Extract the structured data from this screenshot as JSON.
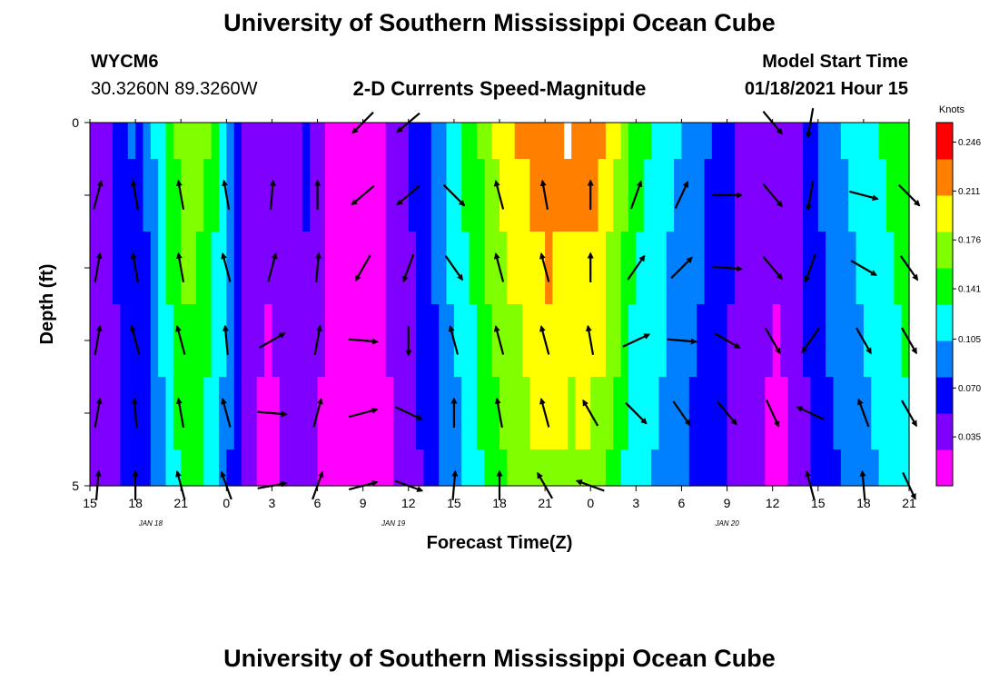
{
  "page": {
    "title": "University of Southern Mississippi Ocean Cube",
    "footer_title": "University of Southern Mississippi Ocean Cube",
    "station_id": "WYCM6",
    "station_coords": "30.3260N 89.3260W",
    "chart_heading": "2-D Currents Speed-Magnitude",
    "model_start_label": "Model Start Time",
    "model_start_value": "01/18/2021 Hour 15"
  },
  "chart_data": {
    "type": "heatmap",
    "title": "2-D Currents Speed-Magnitude",
    "xlabel": "Forecast Time(Z)",
    "ylabel": "Depth (ft)",
    "x_tick_labels": [
      "15",
      "18",
      "21",
      "0",
      "3",
      "6",
      "9",
      "12",
      "15",
      "18",
      "21",
      "0",
      "3",
      "6",
      "9",
      "12",
      "15",
      "18",
      "21"
    ],
    "x_hours": [
      15,
      18,
      21,
      24,
      27,
      30,
      33,
      36,
      39,
      42,
      45,
      48,
      51,
      54,
      57,
      60,
      63,
      66,
      69
    ],
    "xlim": [
      15,
      69
    ],
    "date_labels": [
      {
        "hour": 19,
        "text": "JAN 18"
      },
      {
        "hour": 35,
        "text": "JAN 19"
      },
      {
        "hour": 57,
        "text": "JAN 20"
      }
    ],
    "y_tick_labels": [
      "0",
      "5"
    ],
    "ylim": [
      0,
      5
    ],
    "depth_levels": [
      0,
      1,
      2,
      3,
      4,
      5
    ],
    "colorbar": {
      "unit": "Knots",
      "range": [
        0.0,
        0.26
      ],
      "ticks": [
        0.246,
        0.211,
        0.176,
        0.141,
        0.105,
        0.07,
        0.035
      ],
      "tick_labels": [
        "0.246",
        "0.211",
        "0.176",
        "0.141",
        "0.105",
        "0.070",
        "0.035"
      ],
      "colors": [
        "#ff00ff",
        "#8000ff",
        "#0000ff",
        "#0080ff",
        "#00ffff",
        "#00ff00",
        "#80ff00",
        "#ffff00",
        "#ff8000",
        "#ff0000"
      ]
    },
    "speed_profile": [
      [
        15,
        0.04
      ],
      [
        15.5,
        0.03
      ],
      [
        16.5,
        0.045
      ],
      [
        17.5,
        0.075
      ],
      [
        18.5,
        0.065
      ],
      [
        19.5,
        0.105
      ],
      [
        20.5,
        0.14
      ],
      [
        21.5,
        0.165
      ],
      [
        22.5,
        0.15
      ],
      [
        23.5,
        0.12
      ],
      [
        24.5,
        0.08
      ],
      [
        25.5,
        0.035
      ],
      [
        26.5,
        0.025
      ],
      [
        27.5,
        0.03
      ],
      [
        28.5,
        0.04
      ],
      [
        29.5,
        0.055
      ],
      [
        30.5,
        0.02
      ],
      [
        31.5,
        0.015
      ],
      [
        32.5,
        0.01
      ],
      [
        33.5,
        0.012
      ],
      [
        34.5,
        0.025
      ],
      [
        35.5,
        0.04
      ],
      [
        36.5,
        0.055
      ],
      [
        37.5,
        0.075
      ],
      [
        38.5,
        0.1
      ],
      [
        39.5,
        0.12
      ],
      [
        40.5,
        0.14
      ],
      [
        41.5,
        0.165
      ],
      [
        42.5,
        0.18
      ],
      [
        43.5,
        0.195
      ],
      [
        44.5,
        0.205
      ],
      [
        45.5,
        0.21
      ],
      [
        46.5,
        0.2
      ],
      [
        47.5,
        0.205
      ],
      [
        48.5,
        0.2
      ],
      [
        49.5,
        0.175
      ],
      [
        50.5,
        0.14
      ],
      [
        51.5,
        0.125
      ],
      [
        52.5,
        0.115
      ],
      [
        53.5,
        0.1
      ],
      [
        54.5,
        0.09
      ],
      [
        55.5,
        0.075
      ],
      [
        56.5,
        0.065
      ],
      [
        57.5,
        0.05
      ],
      [
        58.5,
        0.035
      ],
      [
        59.5,
        0.03
      ],
      [
        60.5,
        0.025
      ],
      [
        61.5,
        0.04
      ],
      [
        62.5,
        0.06
      ],
      [
        63.5,
        0.08
      ],
      [
        64.5,
        0.095
      ],
      [
        65.5,
        0.105
      ],
      [
        66.5,
        0.115
      ],
      [
        67.5,
        0.125
      ],
      [
        68.5,
        0.135
      ],
      [
        69,
        0.14
      ]
    ],
    "depth_gain": [
      1.1,
      1.05,
      1.0,
      0.95,
      0.9,
      0.85
    ],
    "vectors": [
      {
        "hour": 15.5,
        "dirs": [
          null,
          15,
          10,
          10,
          10,
          5
        ]
      },
      {
        "hour": 18,
        "dirs": [
          null,
          350,
          350,
          345,
          355,
          0
        ]
      },
      {
        "hour": 21,
        "dirs": [
          null,
          350,
          350,
          345,
          350,
          345
        ]
      },
      {
        "hour": 24,
        "dirs": [
          null,
          350,
          345,
          355,
          345,
          340
        ]
      },
      {
        "hour": 27,
        "dirs": [
          null,
          5,
          15,
          60,
          95,
          80
        ]
      },
      {
        "hour": 30,
        "dirs": [
          null,
          0,
          5,
          10,
          15,
          20
        ]
      },
      {
        "hour": 33,
        "dirs": [
          225,
          230,
          210,
          95,
          75,
          75
        ]
      },
      {
        "hour": 36,
        "dirs": [
          230,
          230,
          200,
          180,
          115,
          110
        ]
      },
      {
        "hour": 39,
        "dirs": [
          null,
          135,
          145,
          345,
          0,
          5
        ]
      },
      {
        "hour": 42,
        "dirs": [
          null,
          345,
          345,
          345,
          350,
          0
        ]
      },
      {
        "hour": 45,
        "dirs": [
          null,
          350,
          345,
          345,
          345,
          330
        ]
      },
      {
        "hour": 48,
        "dirs": [
          null,
          0,
          0,
          350,
          330,
          290
        ]
      },
      {
        "hour": 51,
        "dirs": [
          null,
          20,
          35,
          65,
          135,
          null
        ]
      },
      {
        "hour": 54,
        "dirs": [
          null,
          25,
          45,
          95,
          145,
          null
        ]
      },
      {
        "hour": 57,
        "dirs": [
          null,
          90,
          95,
          120,
          140,
          null
        ]
      },
      {
        "hour": 60,
        "dirs": [
          140,
          140,
          140,
          150,
          155,
          null
        ]
      },
      {
        "hour": 62.5,
        "dirs": [
          190,
          190,
          200,
          215,
          295,
          345
        ]
      },
      {
        "hour": 66,
        "dirs": [
          null,
          105,
          120,
          150,
          340,
          355
        ]
      },
      {
        "hour": 69,
        "dirs": [
          null,
          135,
          145,
          150,
          150,
          155
        ]
      }
    ],
    "gap_marker": {
      "hour": 46.5,
      "depth": [
        0,
        0.5
      ]
    }
  }
}
